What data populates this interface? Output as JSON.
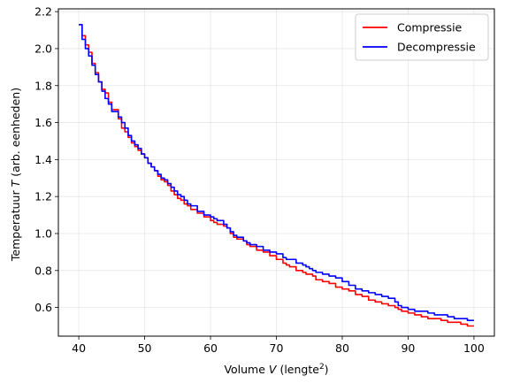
{
  "chart_data": {
    "type": "line",
    "xlabel_prefix": "Volume ",
    "xlabel_var": "V",
    "xlabel_unit_open": " (lengte",
    "xlabel_sup": "2",
    "xlabel_unit_close": ")",
    "ylabel_prefix": "Temperatuur ",
    "ylabel_var": "T",
    "ylabel_suffix": " (arb. eenheden)",
    "xlim": [
      36.9,
      103.1
    ],
    "ylim": [
      0.445,
      2.215
    ],
    "xticks": [
      40,
      50,
      60,
      70,
      80,
      90,
      100
    ],
    "yticks": [
      0.6,
      0.8,
      1.0,
      1.2,
      1.4,
      1.6,
      1.8,
      2.0,
      2.2
    ],
    "xtick_labels": [
      "40",
      "50",
      "60",
      "70",
      "80",
      "90",
      "100"
    ],
    "ytick_labels": [
      "0.6",
      "0.8",
      "1.0",
      "1.2",
      "1.4",
      "1.6",
      "1.8",
      "2.0",
      "2.2"
    ],
    "grid": true,
    "legend_position": "top-right",
    "series": [
      {
        "name": "Compressie",
        "color": "#ff0000",
        "x": [
          40.0,
          40.5,
          41.0,
          41.5,
          42.0,
          42.5,
          43.0,
          43.5,
          44.0,
          44.5,
          45.0,
          46.0,
          46.5,
          47.0,
          47.5,
          48.0,
          48.5,
          49.0,
          49.5,
          50.0,
          50.5,
          51.0,
          51.5,
          52.0,
          52.5,
          53.0,
          53.5,
          54.0,
          54.5,
          55.0,
          55.5,
          56.0,
          56.5,
          57.0,
          58.0,
          59.0,
          60.0,
          60.5,
          61.0,
          62.0,
          62.5,
          63.0,
          63.5,
          64.0,
          65.0,
          65.5,
          66.0,
          67.0,
          68.0,
          69.0,
          70.0,
          71.0,
          71.5,
          72.0,
          73.0,
          74.0,
          74.5,
          75.0,
          75.5,
          76.0,
          77.0,
          78.0,
          79.0,
          80.0,
          81.0,
          82.0,
          83.0,
          84.0,
          85.0,
          86.0,
          87.0,
          88.0,
          88.5,
          89.0,
          90.0,
          91.0,
          92.0,
          93.0,
          94.0,
          95.0,
          96.0,
          97.0,
          98.0,
          99.0,
          100.0
        ],
        "y": [
          2.13,
          2.07,
          2.02,
          1.98,
          1.92,
          1.87,
          1.82,
          1.78,
          1.76,
          1.71,
          1.67,
          1.62,
          1.57,
          1.55,
          1.52,
          1.49,
          1.47,
          1.45,
          1.43,
          1.41,
          1.38,
          1.36,
          1.34,
          1.31,
          1.29,
          1.28,
          1.26,
          1.23,
          1.21,
          1.19,
          1.18,
          1.16,
          1.15,
          1.13,
          1.11,
          1.09,
          1.07,
          1.06,
          1.05,
          1.04,
          1.03,
          1.0,
          0.98,
          0.97,
          0.96,
          0.94,
          0.93,
          0.91,
          0.9,
          0.88,
          0.86,
          0.84,
          0.83,
          0.82,
          0.8,
          0.79,
          0.78,
          0.78,
          0.77,
          0.75,
          0.74,
          0.73,
          0.71,
          0.7,
          0.69,
          0.67,
          0.66,
          0.64,
          0.63,
          0.62,
          0.61,
          0.6,
          0.59,
          0.58,
          0.57,
          0.56,
          0.55,
          0.54,
          0.54,
          0.53,
          0.52,
          0.52,
          0.51,
          0.5,
          0.5
        ]
      },
      {
        "name": "Decompressie",
        "color": "#0000ff",
        "x": [
          40.0,
          40.5,
          41.0,
          41.5,
          42.0,
          42.5,
          43.0,
          43.5,
          44.0,
          44.5,
          45.0,
          46.0,
          46.5,
          47.0,
          47.5,
          48.0,
          48.5,
          49.0,
          49.5,
          50.0,
          50.5,
          51.0,
          51.5,
          52.0,
          52.5,
          53.0,
          53.5,
          54.0,
          54.5,
          55.0,
          55.5,
          56.0,
          56.5,
          57.0,
          58.0,
          59.0,
          60.0,
          60.5,
          61.0,
          62.0,
          62.5,
          63.0,
          63.5,
          64.0,
          65.0,
          65.5,
          66.0,
          67.0,
          68.0,
          69.0,
          70.0,
          71.0,
          71.5,
          72.0,
          73.0,
          74.0,
          74.5,
          75.0,
          75.5,
          76.0,
          77.0,
          78.0,
          79.0,
          80.0,
          81.0,
          82.0,
          83.0,
          84.0,
          85.0,
          86.0,
          87.0,
          88.0,
          88.5,
          89.0,
          90.0,
          91.0,
          92.0,
          93.0,
          94.0,
          95.0,
          96.0,
          97.0,
          98.0,
          99.0,
          100.0
        ],
        "y": [
          2.13,
          2.05,
          2.0,
          1.96,
          1.91,
          1.86,
          1.82,
          1.77,
          1.73,
          1.7,
          1.66,
          1.63,
          1.6,
          1.57,
          1.53,
          1.5,
          1.48,
          1.46,
          1.43,
          1.41,
          1.38,
          1.36,
          1.34,
          1.32,
          1.3,
          1.29,
          1.27,
          1.25,
          1.23,
          1.21,
          1.2,
          1.18,
          1.16,
          1.15,
          1.12,
          1.1,
          1.09,
          1.08,
          1.07,
          1.05,
          1.03,
          1.01,
          0.99,
          0.98,
          0.96,
          0.95,
          0.94,
          0.93,
          0.91,
          0.9,
          0.89,
          0.87,
          0.86,
          0.86,
          0.84,
          0.83,
          0.82,
          0.81,
          0.8,
          0.79,
          0.78,
          0.77,
          0.76,
          0.74,
          0.72,
          0.7,
          0.69,
          0.68,
          0.67,
          0.66,
          0.65,
          0.63,
          0.61,
          0.6,
          0.59,
          0.58,
          0.58,
          0.57,
          0.56,
          0.56,
          0.55,
          0.54,
          0.54,
          0.53,
          0.53
        ]
      }
    ]
  }
}
